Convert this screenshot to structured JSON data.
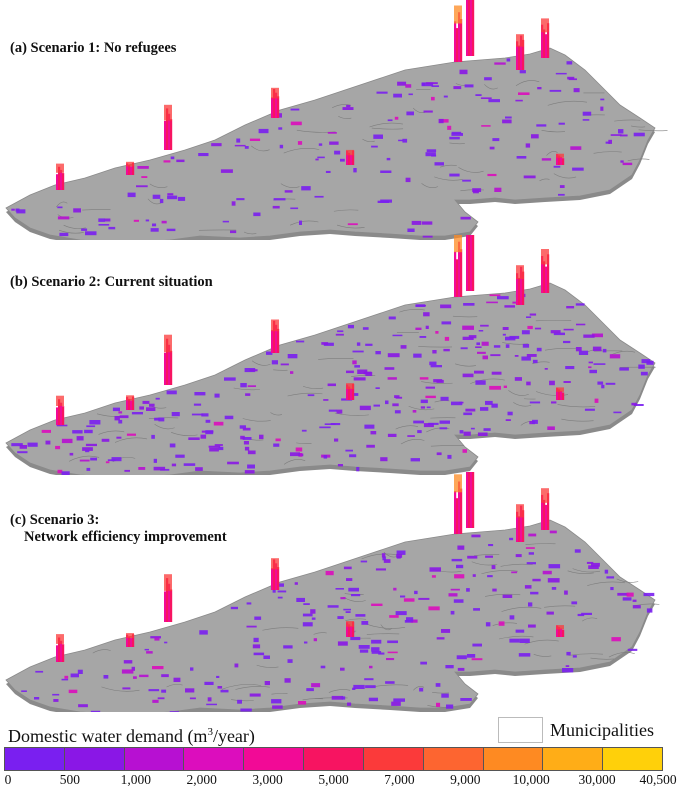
{
  "panels": [
    {
      "label_lines": [
        "(a) Scenario 1: No refugees"
      ],
      "intensity": 0.55
    },
    {
      "label_lines": [
        "(b) Scenario 2: Current situation"
      ],
      "intensity": 0.85
    },
    {
      "label_lines": [
        "(c) Scenario 3:",
        "Network efficiency improvement"
      ],
      "intensity": 0.7
    }
  ],
  "legend": {
    "title": "Domestic water demand (m",
    "title_sup": "3",
    "title_suffix": "/year)",
    "ticks": [
      "0",
      "500",
      "1,000",
      "2,000",
      "3,000",
      "5,000",
      "7,000",
      "9,000",
      "10,000",
      "30,000",
      "40,500"
    ],
    "colors": [
      "#7a1ff0",
      "#8a17e6",
      "#b710d2",
      "#dc0dbd",
      "#f20a96",
      "#f71461",
      "#fb3a3a",
      "#fd6530",
      "#fe8a22",
      "#ffad17",
      "#ffd00a"
    ],
    "municipalities_label": "Municipalities"
  },
  "colors": {
    "terrain": "#a6a6a6",
    "terrain_edge": "#8a8a8a",
    "border_lines": "#7d7d7d"
  }
}
